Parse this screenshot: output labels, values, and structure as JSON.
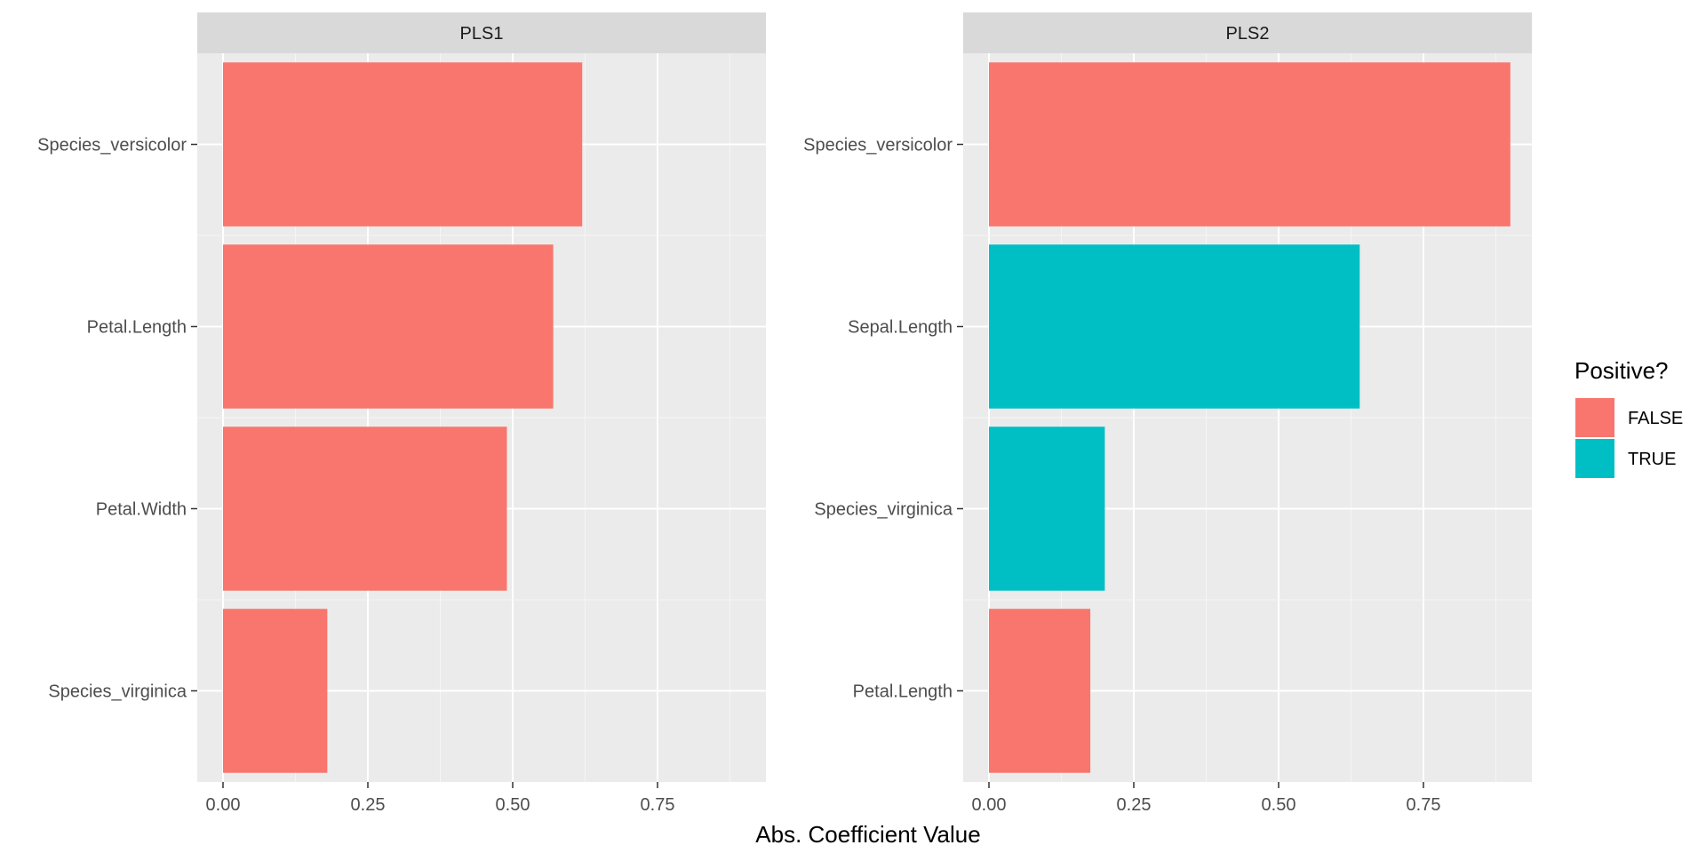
{
  "chart_data": {
    "type": "bar",
    "orientation": "horizontal",
    "xlabel": "Abs. Coefficient Value",
    "xlim": [
      0,
      0.9
    ],
    "xticks": [
      "0.00",
      "0.25",
      "0.50",
      "0.75"
    ],
    "xtick_values": [
      0,
      0.25,
      0.5,
      0.75
    ],
    "grid": true,
    "legend": {
      "title": "Positive?",
      "position": "right",
      "entries": [
        {
          "label": "FALSE",
          "color": "#F8766D"
        },
        {
          "label": "TRUE",
          "color": "#00BFC4"
        }
      ]
    },
    "facets": [
      {
        "title": "PLS1",
        "categories": [
          "Species_versicolor",
          "Petal.Length",
          "Petal.Width",
          "Species_virginica"
        ],
        "values": [
          0.62,
          0.57,
          0.49,
          0.18
        ],
        "positive": [
          "FALSE",
          "FALSE",
          "FALSE",
          "FALSE"
        ]
      },
      {
        "title": "PLS2",
        "categories": [
          "Species_versicolor",
          "Sepal.Length",
          "Species_virginica",
          "Petal.Length"
        ],
        "values": [
          0.9,
          0.64,
          0.2,
          0.175
        ],
        "positive": [
          "FALSE",
          "TRUE",
          "TRUE",
          "FALSE"
        ]
      }
    ]
  }
}
